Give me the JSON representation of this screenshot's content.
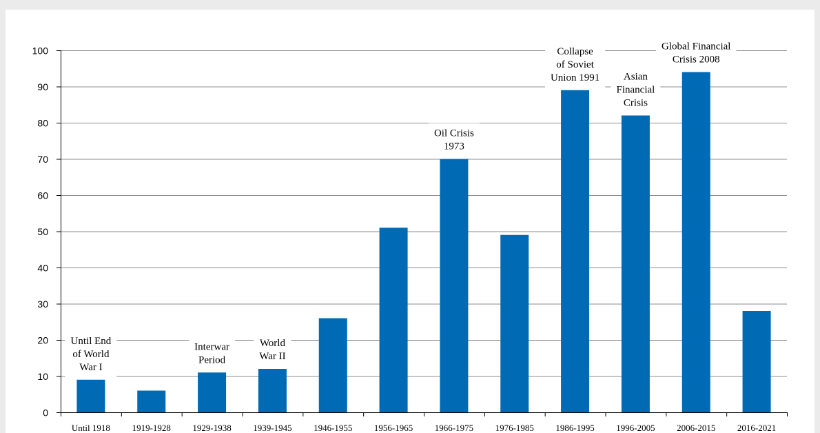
{
  "chart_data": {
    "type": "bar",
    "title": "",
    "xlabel": "",
    "ylabel": "",
    "ylim": [
      0,
      100
    ],
    "yticks": [
      0,
      10,
      20,
      30,
      40,
      50,
      60,
      70,
      80,
      90,
      100
    ],
    "grid": true,
    "bar_color": "#006ab4",
    "categories": [
      "Until 1918",
      "1919-1928",
      "1929-1938",
      "1939-1945",
      "1946-1955",
      "1956-1965",
      "1966-1975",
      "1976-1985",
      "1986-1995",
      "1996-2005",
      "2006-2015",
      "2016-2021"
    ],
    "values": [
      9,
      6,
      11,
      12,
      26,
      51,
      70,
      49,
      89,
      82,
      94,
      28
    ],
    "annotations": [
      {
        "category": "Until 1918",
        "lines": [
          "Until End",
          "of World",
          "War I"
        ]
      },
      {
        "category": "1929-1938",
        "lines": [
          "Interwar",
          "Period"
        ]
      },
      {
        "category": "1939-1945",
        "lines": [
          "World",
          "War II"
        ]
      },
      {
        "category": "1966-1975",
        "lines": [
          "Oil Crisis",
          "1973"
        ]
      },
      {
        "category": "1986-1995",
        "lines": [
          "Collapse",
          "of Soviet",
          "Union 1991"
        ]
      },
      {
        "category": "1996-2005",
        "lines": [
          "Asian",
          "Financial",
          "Crisis"
        ]
      },
      {
        "category": "2006-2015",
        "lines": [
          "Global Financial",
          "Crisis 2008"
        ]
      }
    ]
  }
}
